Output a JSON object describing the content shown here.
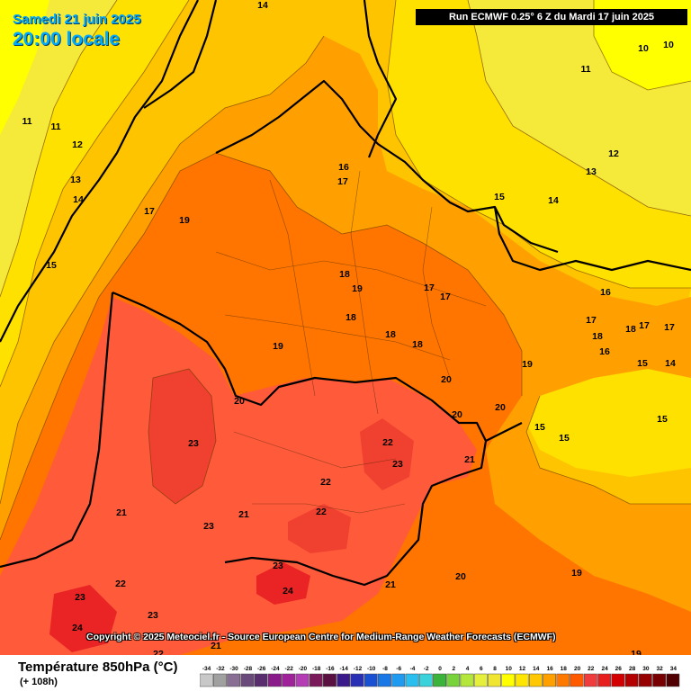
{
  "header": {
    "date_text": "Samedi 21 juin 2025",
    "time_text": "20:00 locale",
    "run_text": "Run ECMWF 0.25° 6 Z du Mardi 17 juin 2025"
  },
  "copyright": "Copyright © 2025 Meteociel.fr - Source European Centre for Medium-Range Weather Forecasts (ECMWF)",
  "legend": {
    "title": "Température 850hPa (°C)",
    "subtitle": "(+ 108h)",
    "scale_values": [
      -34,
      -32,
      -30,
      -28,
      -26,
      -24,
      -22,
      -20,
      -18,
      -16,
      -14,
      -12,
      -10,
      -8,
      -6,
      -4,
      -2,
      0,
      2,
      4,
      6,
      8,
      10,
      12,
      14,
      16,
      18,
      20,
      22,
      24,
      26,
      28,
      30,
      32,
      34
    ],
    "scale_colors": [
      "#c8c8c8",
      "#a0a0a0",
      "#8a6f95",
      "#6a4a7a",
      "#5a2e6e",
      "#8b1a8b",
      "#a0229a",
      "#b43cb4",
      "#7a1a5a",
      "#5a1040",
      "#3a1a8a",
      "#2a30b4",
      "#1a50d2",
      "#1a78e6",
      "#1e9af0",
      "#28bef0",
      "#3cd2dc",
      "#3cb43c",
      "#78d23c",
      "#b4e63c",
      "#e6f03c",
      "#f0e632",
      "#ffff00",
      "#ffe600",
      "#ffc800",
      "#ffa000",
      "#ff7800",
      "#ff5a00",
      "#f03c3c",
      "#e61e1e",
      "#d20000",
      "#b40000",
      "#960000",
      "#780000",
      "#500000"
    ]
  },
  "colors": {
    "t10": "#ffff00",
    "t12": "#f5e93a",
    "t14": "#ffe100",
    "t16": "#ffc400",
    "t18": "#ffa000",
    "t20": "#ff7500",
    "t22": "#ff5a3a",
    "t24": "#ea2424",
    "land_border": "#000000"
  },
  "contour_labels": [
    {
      "text": "14"
    },
    {
      "text": "10"
    },
    {
      "text": "10"
    },
    {
      "text": "11"
    },
    {
      "text": "11"
    },
    {
      "text": "11"
    },
    {
      "text": "12"
    },
    {
      "text": "12"
    },
    {
      "text": "13"
    },
    {
      "text": "13"
    },
    {
      "text": "14"
    },
    {
      "text": "14"
    },
    {
      "text": "15"
    },
    {
      "text": "15"
    },
    {
      "text": "16"
    },
    {
      "text": "17"
    },
    {
      "text": "17"
    },
    {
      "text": "19"
    },
    {
      "text": "18"
    },
    {
      "text": "19"
    },
    {
      "text": "17"
    },
    {
      "text": "17"
    },
    {
      "text": "18"
    },
    {
      "text": "18"
    },
    {
      "text": "18"
    },
    {
      "text": "19"
    },
    {
      "text": "16"
    },
    {
      "text": "17"
    },
    {
      "text": "18"
    },
    {
      "text": "18"
    },
    {
      "text": "17"
    },
    {
      "text": "17"
    },
    {
      "text": "16"
    },
    {
      "text": "15"
    },
    {
      "text": "14"
    },
    {
      "text": "19"
    },
    {
      "text": "20"
    },
    {
      "text": "20"
    },
    {
      "text": "20"
    },
    {
      "text": "20"
    },
    {
      "text": "23"
    },
    {
      "text": "22"
    },
    {
      "text": "23"
    },
    {
      "text": "21"
    },
    {
      "text": "22"
    },
    {
      "text": "22"
    },
    {
      "text": "21"
    },
    {
      "text": "21"
    },
    {
      "text": "23"
    },
    {
      "text": "22"
    },
    {
      "text": "23"
    },
    {
      "text": "24"
    },
    {
      "text": "21"
    },
    {
      "text": "20"
    },
    {
      "text": "19"
    },
    {
      "text": "15"
    },
    {
      "text": "15"
    },
    {
      "text": "15"
    },
    {
      "text": "24"
    },
    {
      "text": "23"
    },
    {
      "text": "23"
    },
    {
      "text": "22"
    },
    {
      "text": "21"
    },
    {
      "text": "19"
    },
    {
      "text": "10"
    }
  ]
}
